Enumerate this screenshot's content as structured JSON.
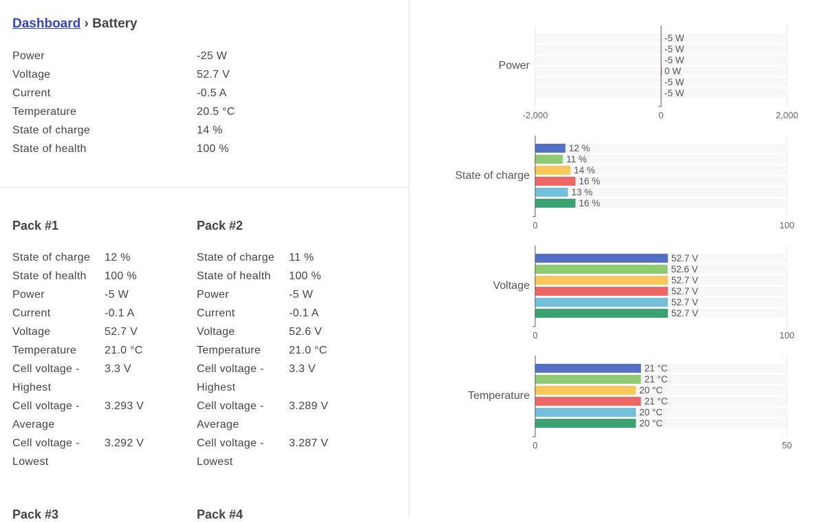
{
  "breadcrumb": {
    "link": "Dashboard",
    "sep": "›",
    "current": "Battery"
  },
  "overview": [
    {
      "label": "Power",
      "value": "-25 W"
    },
    {
      "label": "Voltage",
      "value": "52.7 V"
    },
    {
      "label": "Current",
      "value": "-0.5 A"
    },
    {
      "label": "Temperature",
      "value": "20.5 °C"
    },
    {
      "label": "State of charge",
      "value": "14 %"
    },
    {
      "label": "State of health",
      "value": "100 %"
    }
  ],
  "packs": [
    {
      "title": "Pack #1",
      "rows": [
        [
          "State of charge",
          "12 %"
        ],
        [
          "State of health",
          "100 %"
        ],
        [
          "Power",
          "-5 W"
        ],
        [
          "Current",
          "-0.1 A"
        ],
        [
          "Voltage",
          "52.7 V"
        ],
        [
          "Temperature",
          "21.0 °C"
        ],
        [
          "Cell voltage -",
          "3.3 V"
        ],
        [
          "Highest",
          ""
        ],
        [
          "Cell voltage -",
          "3.293 V"
        ],
        [
          "Average",
          ""
        ],
        [
          "Cell voltage -",
          "3.292 V"
        ],
        [
          "Lowest",
          ""
        ]
      ]
    },
    {
      "title": "Pack #2",
      "rows": [
        [
          "State of charge",
          "11 %"
        ],
        [
          "State of health",
          "100 %"
        ],
        [
          "Power",
          "-5 W"
        ],
        [
          "Current",
          "-0.1 A"
        ],
        [
          "Voltage",
          "52.6 V"
        ],
        [
          "Temperature",
          "21.0 °C"
        ],
        [
          "Cell voltage -",
          "3.3 V"
        ],
        [
          "Highest",
          ""
        ],
        [
          "Cell voltage -",
          "3.289 V"
        ],
        [
          "Average",
          ""
        ],
        [
          "Cell voltage -",
          "3.287 V"
        ],
        [
          "Lowest",
          ""
        ]
      ]
    },
    {
      "title": "Pack #3",
      "rows": []
    },
    {
      "title": "Pack #4",
      "rows": []
    }
  ],
  "colors": [
    "#5470c6",
    "#91cc75",
    "#fac858",
    "#ee6666",
    "#73c0de",
    "#3ba272"
  ],
  "chart_data": [
    {
      "type": "bar",
      "title": "Power",
      "xlim": [
        -2000,
        2000
      ],
      "ticks": [
        "-2,000",
        "0",
        "2,000"
      ],
      "tickvals": [
        -2000,
        0,
        2000
      ],
      "values": [
        -5,
        -5,
        -5,
        0,
        -5,
        -5
      ],
      "labels": [
        "-5 W",
        "-5 W",
        "-5 W",
        "0 W",
        "-5 W",
        "-5 W"
      ]
    },
    {
      "type": "bar",
      "title": "State of charge",
      "xlim": [
        0,
        100
      ],
      "ticks": [
        "0",
        "100"
      ],
      "tickvals": [
        0,
        100
      ],
      "values": [
        12,
        11,
        14,
        16,
        13,
        16
      ],
      "labels": [
        "12 %",
        "11 %",
        "14 %",
        "16 %",
        "13 %",
        "16 %"
      ]
    },
    {
      "type": "bar",
      "title": "Voltage",
      "xlim": [
        0,
        100
      ],
      "ticks": [
        "0",
        "100"
      ],
      "tickvals": [
        0,
        100
      ],
      "values": [
        52.7,
        52.6,
        52.7,
        52.7,
        52.7,
        52.7
      ],
      "labels": [
        "52.7 V",
        "52.6 V",
        "52.7 V",
        "52.7 V",
        "52.7 V",
        "52.7 V"
      ]
    },
    {
      "type": "bar",
      "title": "Temperature",
      "xlim": [
        0,
        50
      ],
      "ticks": [
        "0",
        "50"
      ],
      "tickvals": [
        0,
        50
      ],
      "values": [
        21,
        21,
        20,
        21,
        20,
        20
      ],
      "labels": [
        "21 °C",
        "21 °C",
        "20 °C",
        "21 °C",
        "20 °C",
        "20 °C"
      ]
    }
  ]
}
